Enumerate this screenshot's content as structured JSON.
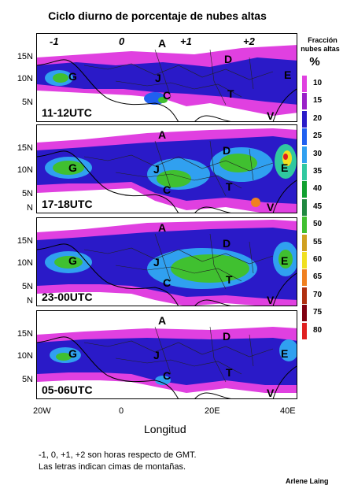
{
  "title": "Ciclo diurno de porcentaje de nubes altas",
  "legend": {
    "title_line1": "Fracción",
    "title_line2": "nubes altas",
    "unit": "%",
    "levels": [
      {
        "label": "10",
        "color": "#e040e0"
      },
      {
        "label": "15",
        "color": "#9a20c8"
      },
      {
        "label": "20",
        "color": "#2a1ac8"
      },
      {
        "label": "25",
        "color": "#2060f0"
      },
      {
        "label": "30",
        "color": "#30a0f0"
      },
      {
        "label": "35",
        "color": "#30c8a0"
      },
      {
        "label": "40",
        "color": "#10a030"
      },
      {
        "label": "45",
        "color": "#208840"
      },
      {
        "label": "50",
        "color": "#40c030"
      },
      {
        "label": "55",
        "color": "#d0a020"
      },
      {
        "label": "60",
        "color": "#f0e020"
      },
      {
        "label": "65",
        "color": "#f08020"
      },
      {
        "label": "70",
        "color": "#b03010"
      },
      {
        "label": "75",
        "color": "#800010"
      },
      {
        "label": "80",
        "color": "#e02020"
      }
    ]
  },
  "panels": [
    {
      "time": "11-12UTC"
    },
    {
      "time": "17-18UTC"
    },
    {
      "time": "23-00UTC"
    },
    {
      "time": "05-06UTC"
    }
  ],
  "hour_offsets": [
    "-1",
    "0",
    "+1",
    "+2"
  ],
  "y_ticks": [
    "15N",
    "10N",
    "5N",
    "N"
  ],
  "x_ticks": [
    "20W",
    "0",
    "20E",
    "40E"
  ],
  "x_label": "Longitud",
  "mountain_letters": [
    "A",
    "C",
    "D",
    "E",
    "G",
    "J",
    "T",
    "V"
  ],
  "notes": [
    "-1, 0,  +1, +2 son horas respecto de GMT.",
    "Las letras indican cimas de montañas."
  ],
  "credit": "Arlene Laing"
}
